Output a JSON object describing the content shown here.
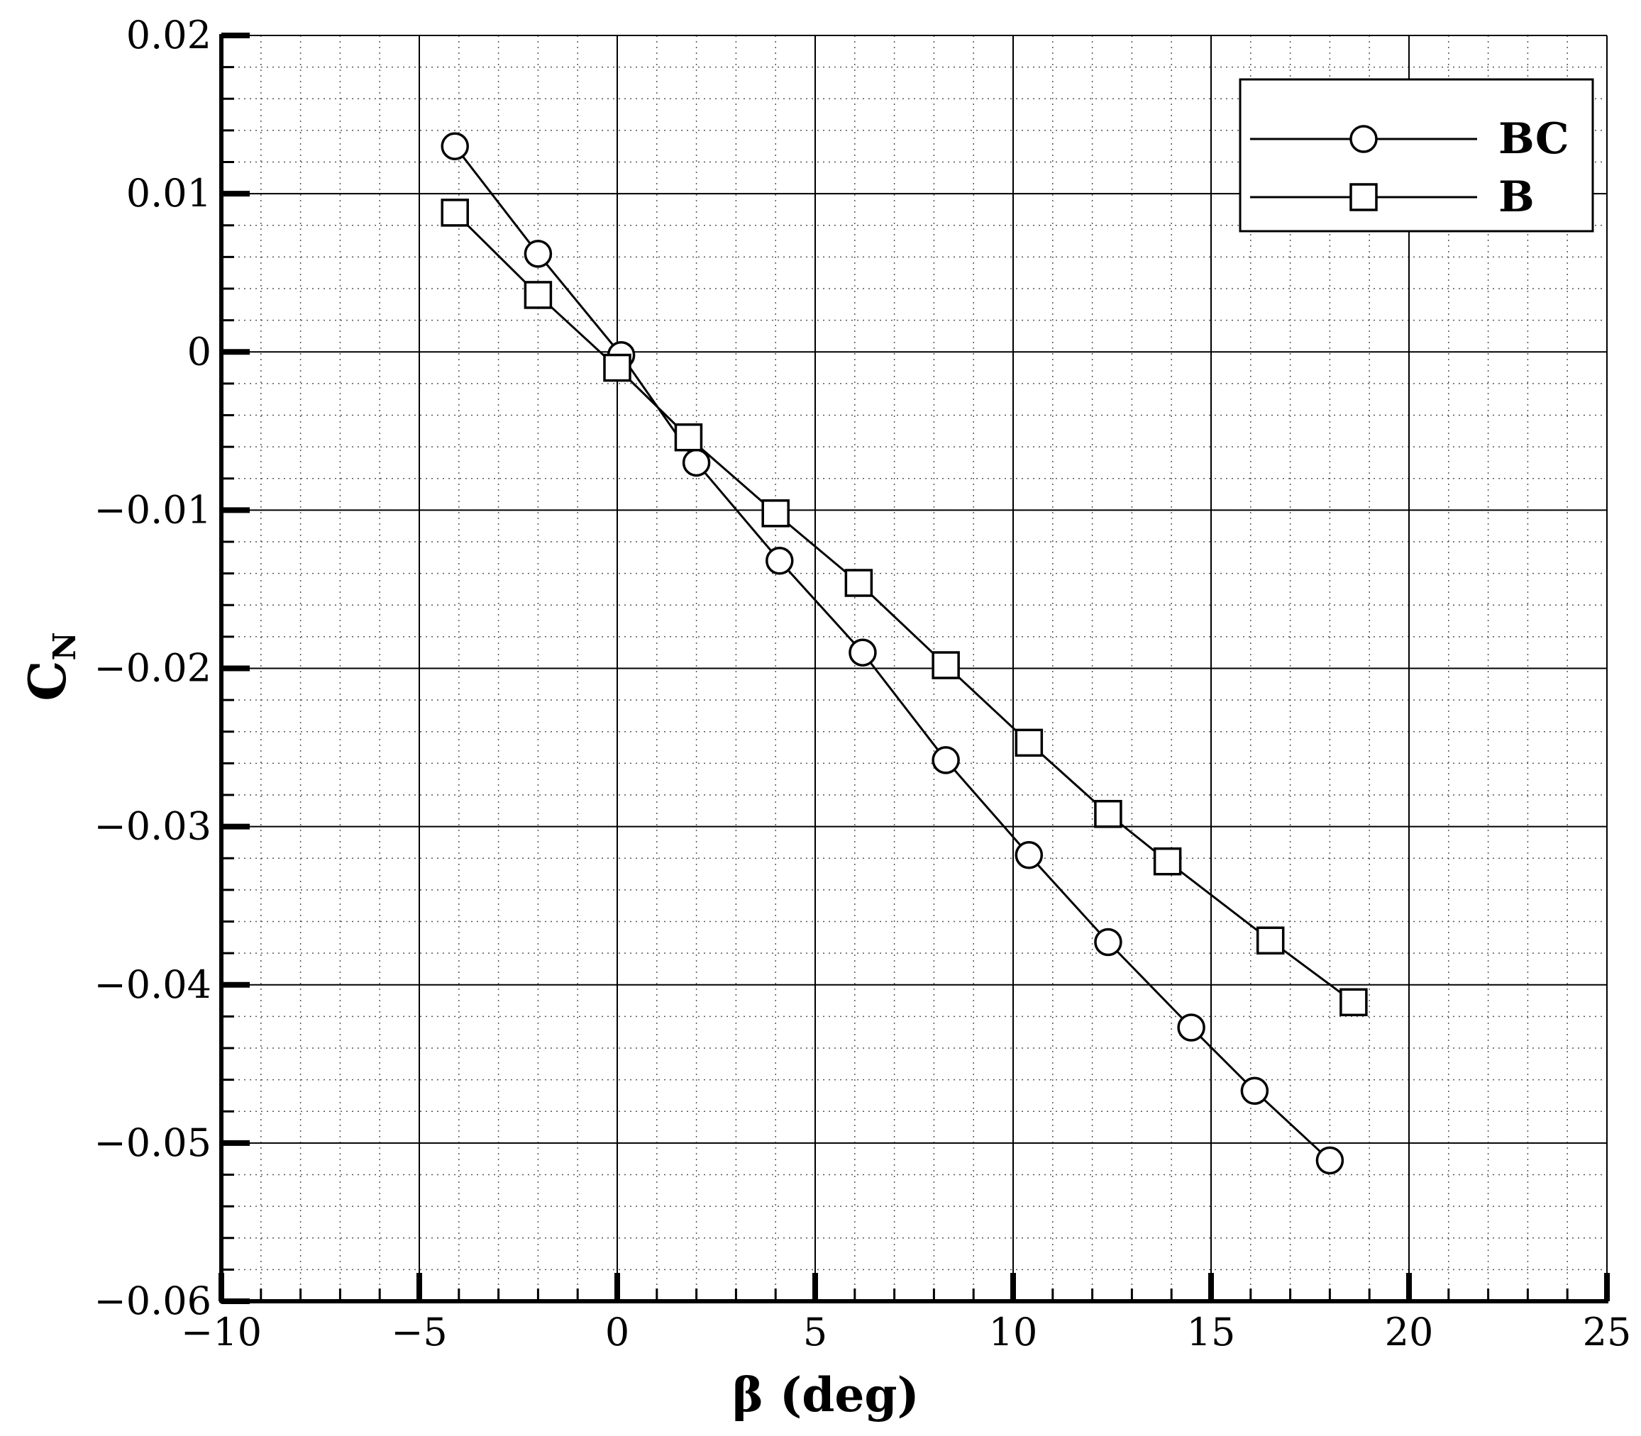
{
  "chart_data": {
    "type": "line",
    "xlabel": "β (deg)",
    "ylabel_main": "C",
    "ylabel_sub": "N",
    "xlim": [
      -10,
      25
    ],
    "ylim": [
      -0.06,
      0.02
    ],
    "x_ticks": [
      -10,
      -5,
      0,
      5,
      10,
      15,
      20,
      25
    ],
    "x_tick_labels": [
      "−10",
      "−5",
      "0",
      "5",
      "10",
      "15",
      "20",
      "25"
    ],
    "y_ticks": [
      -0.06,
      -0.05,
      -0.04,
      -0.03,
      -0.02,
      -0.01,
      0,
      0.01,
      0.02
    ],
    "y_tick_labels": [
      "−0.06",
      "−0.05",
      "−0.04",
      "−0.03",
      "−0.02",
      "−0.01",
      "0",
      "0.01",
      "0.02"
    ],
    "x_minor_step": 1,
    "y_minor_step": 0.002,
    "grid": true,
    "legend_position": "top-right",
    "series": [
      {
        "name": "BC",
        "marker": "circle",
        "x": [
          -4.1,
          -2.0,
          0.1,
          2.0,
          4.1,
          6.2,
          8.3,
          10.4,
          12.4,
          14.5,
          16.1,
          18.0
        ],
        "y": [
          0.013,
          0.0062,
          -0.0002,
          -0.007,
          -0.0132,
          -0.019,
          -0.0258,
          -0.0318,
          -0.0373,
          -0.0427,
          -0.0467,
          -0.0511
        ]
      },
      {
        "name": "B",
        "marker": "square",
        "x": [
          -4.1,
          -2.0,
          0.0,
          1.8,
          4.0,
          6.1,
          8.3,
          10.4,
          12.4,
          13.9,
          16.5,
          18.6
        ],
        "y": [
          0.0088,
          0.0036,
          -0.001,
          -0.0054,
          -0.0102,
          -0.0146,
          -0.0198,
          -0.0247,
          -0.0292,
          -0.0322,
          -0.0372,
          -0.0411
        ]
      }
    ]
  }
}
